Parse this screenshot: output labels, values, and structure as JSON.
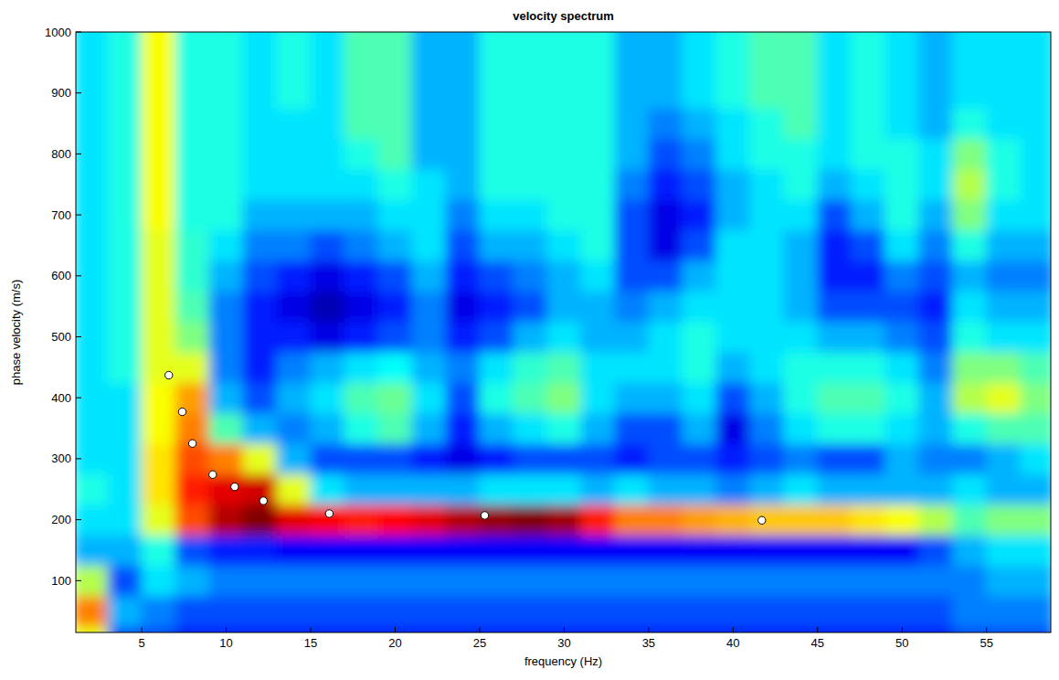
{
  "chart_data": {
    "type": "heatmap",
    "title": "velocity spectrum",
    "x_label": "frequency (Hz)",
    "y_label": "phase velocity (m/s)",
    "xlim": [
      1.1,
      58.8
    ],
    "ylim": [
      15,
      1000
    ],
    "xticks": [
      5,
      10,
      15,
      20,
      25,
      30,
      35,
      40,
      45,
      50,
      55
    ],
    "yticks": [
      100,
      200,
      300,
      400,
      500,
      600,
      700,
      800,
      900,
      1000
    ],
    "zlim": [
      0,
      1
    ],
    "x": [
      2,
      4,
      6,
      8,
      10,
      12,
      14,
      16,
      18,
      20,
      22,
      24,
      26,
      28,
      30,
      32,
      34,
      36,
      38,
      40,
      42,
      44,
      46,
      48,
      50,
      52,
      54,
      56,
      58
    ],
    "y": [
      0,
      50,
      100,
      150,
      200,
      250,
      300,
      350,
      400,
      450,
      500,
      550,
      600,
      650,
      700,
      750,
      800,
      850,
      900,
      950,
      1000
    ],
    "values": [
      [
        0.6,
        0.75,
        0.55,
        0.3,
        0.35,
        0.4,
        0.35,
        0.35,
        0.35,
        0.35,
        0.35,
        0.35,
        0.35,
        0.35,
        0.35,
        0.35,
        0.35,
        0.35,
        0.35,
        0.35,
        0.35
      ],
      [
        0.2,
        0.3,
        0.2,
        0.3,
        0.35,
        0.35,
        0.35,
        0.35,
        0.35,
        0.4,
        0.4,
        0.4,
        0.4,
        0.4,
        0.4,
        0.4,
        0.4,
        0.4,
        0.4,
        0.4,
        0.4
      ],
      [
        0.2,
        0.25,
        0.35,
        0.4,
        0.6,
        0.65,
        0.65,
        0.62,
        0.62,
        0.6,
        0.6,
        0.6,
        0.6,
        0.6,
        0.62,
        0.62,
        0.62,
        0.62,
        0.62,
        0.62,
        0.62
      ],
      [
        0.15,
        0.2,
        0.3,
        0.2,
        0.8,
        0.85,
        0.8,
        0.75,
        0.72,
        0.6,
        0.5,
        0.45,
        0.42,
        0.42,
        0.4,
        0.4,
        0.4,
        0.4,
        0.4,
        0.4,
        0.4
      ],
      [
        0.15,
        0.2,
        0.25,
        0.15,
        0.95,
        0.9,
        0.75,
        0.45,
        0.3,
        0.25,
        0.25,
        0.25,
        0.3,
        0.35,
        0.4,
        0.4,
        0.4,
        0.4,
        0.4,
        0.4,
        0.4
      ],
      [
        0.15,
        0.2,
        0.25,
        0.15,
        1.0,
        0.92,
        0.6,
        0.3,
        0.2,
        0.15,
        0.15,
        0.15,
        0.2,
        0.25,
        0.3,
        0.35,
        0.35,
        0.35,
        0.35,
        0.35,
        0.35
      ],
      [
        0.15,
        0.2,
        0.25,
        0.12,
        0.9,
        0.6,
        0.3,
        0.25,
        0.3,
        0.25,
        0.15,
        0.1,
        0.15,
        0.25,
        0.3,
        0.35,
        0.35,
        0.35,
        0.4,
        0.4,
        0.4
      ],
      [
        0.15,
        0.2,
        0.25,
        0.12,
        0.88,
        0.35,
        0.2,
        0.3,
        0.35,
        0.3,
        0.1,
        0.05,
        0.1,
        0.2,
        0.3,
        0.35,
        0.35,
        0.35,
        0.35,
        0.35,
        0.35
      ],
      [
        0.15,
        0.2,
        0.25,
        0.12,
        0.85,
        0.3,
        0.2,
        0.4,
        0.45,
        0.35,
        0.15,
        0.1,
        0.15,
        0.25,
        0.3,
        0.35,
        0.4,
        0.45,
        0.45,
        0.45,
        0.45
      ],
      [
        0.15,
        0.2,
        0.25,
        0.12,
        0.87,
        0.3,
        0.2,
        0.45,
        0.48,
        0.38,
        0.2,
        0.15,
        0.2,
        0.3,
        0.35,
        0.4,
        0.45,
        0.45,
        0.45,
        0.45,
        0.45
      ],
      [
        0.15,
        0.2,
        0.25,
        0.12,
        0.9,
        0.3,
        0.15,
        0.3,
        0.35,
        0.3,
        0.25,
        0.25,
        0.3,
        0.35,
        0.35,
        0.35,
        0.3,
        0.3,
        0.3,
        0.3,
        0.3
      ],
      [
        0.15,
        0.2,
        0.25,
        0.12,
        0.95,
        0.3,
        0.1,
        0.15,
        0.2,
        0.25,
        0.15,
        0.1,
        0.15,
        0.2,
        0.25,
        0.3,
        0.3,
        0.3,
        0.3,
        0.3,
        0.3
      ],
      [
        0.15,
        0.2,
        0.25,
        0.12,
        0.98,
        0.35,
        0.15,
        0.3,
        0.4,
        0.35,
        0.2,
        0.15,
        0.2,
        0.3,
        0.35,
        0.4,
        0.4,
        0.4,
        0.4,
        0.4,
        0.4
      ],
      [
        0.15,
        0.2,
        0.25,
        0.12,
        1.0,
        0.35,
        0.2,
        0.35,
        0.45,
        0.42,
        0.3,
        0.2,
        0.25,
        0.3,
        0.35,
        0.4,
        0.4,
        0.4,
        0.4,
        0.4,
        0.4
      ],
      [
        0.15,
        0.2,
        0.25,
        0.12,
        0.97,
        0.35,
        0.2,
        0.4,
        0.5,
        0.45,
        0.35,
        0.3,
        0.3,
        0.35,
        0.4,
        0.4,
        0.4,
        0.4,
        0.4,
        0.4,
        0.4
      ],
      [
        0.15,
        0.2,
        0.25,
        0.12,
        0.85,
        0.3,
        0.2,
        0.3,
        0.35,
        0.35,
        0.3,
        0.3,
        0.35,
        0.4,
        0.4,
        0.4,
        0.4,
        0.4,
        0.4,
        0.4,
        0.4
      ],
      [
        0.15,
        0.2,
        0.25,
        0.12,
        0.75,
        0.35,
        0.15,
        0.2,
        0.3,
        0.35,
        0.3,
        0.25,
        0.2,
        0.2,
        0.2,
        0.25,
        0.3,
        0.3,
        0.3,
        0.3,
        0.3
      ],
      [
        0.15,
        0.2,
        0.25,
        0.12,
        0.75,
        0.3,
        0.2,
        0.2,
        0.3,
        0.35,
        0.35,
        0.3,
        0.2,
        0.1,
        0.1,
        0.15,
        0.2,
        0.25,
        0.3,
        0.3,
        0.3
      ],
      [
        0.15,
        0.2,
        0.25,
        0.12,
        0.72,
        0.3,
        0.2,
        0.3,
        0.35,
        0.4,
        0.4,
        0.35,
        0.3,
        0.2,
        0.15,
        0.2,
        0.25,
        0.3,
        0.35,
        0.35,
        0.35
      ],
      [
        0.15,
        0.2,
        0.25,
        0.12,
        0.7,
        0.25,
        0.15,
        0.1,
        0.2,
        0.3,
        0.35,
        0.35,
        0.35,
        0.35,
        0.3,
        0.3,
        0.35,
        0.35,
        0.4,
        0.4,
        0.4
      ],
      [
        0.15,
        0.2,
        0.25,
        0.12,
        0.68,
        0.3,
        0.2,
        0.25,
        0.3,
        0.35,
        0.35,
        0.35,
        0.35,
        0.35,
        0.35,
        0.35,
        0.4,
        0.4,
        0.45,
        0.45,
        0.45
      ],
      [
        0.15,
        0.2,
        0.25,
        0.12,
        0.68,
        0.35,
        0.25,
        0.35,
        0.4,
        0.4,
        0.35,
        0.3,
        0.3,
        0.3,
        0.35,
        0.4,
        0.4,
        0.45,
        0.45,
        0.45,
        0.45
      ],
      [
        0.15,
        0.2,
        0.25,
        0.12,
        0.68,
        0.3,
        0.2,
        0.4,
        0.45,
        0.4,
        0.3,
        0.2,
        0.15,
        0.15,
        0.2,
        0.3,
        0.35,
        0.35,
        0.35,
        0.35,
        0.35
      ],
      [
        0.15,
        0.2,
        0.25,
        0.12,
        0.65,
        0.3,
        0.2,
        0.4,
        0.45,
        0.4,
        0.3,
        0.2,
        0.15,
        0.2,
        0.3,
        0.35,
        0.4,
        0.4,
        0.4,
        0.4,
        0.4
      ],
      [
        0.15,
        0.2,
        0.25,
        0.12,
        0.62,
        0.3,
        0.3,
        0.35,
        0.4,
        0.35,
        0.25,
        0.2,
        0.25,
        0.35,
        0.4,
        0.4,
        0.4,
        0.35,
        0.35,
        0.35,
        0.35
      ],
      [
        0.15,
        0.2,
        0.25,
        0.2,
        0.55,
        0.3,
        0.25,
        0.3,
        0.3,
        0.25,
        0.2,
        0.15,
        0.2,
        0.25,
        0.3,
        0.35,
        0.35,
        0.3,
        0.3,
        0.3,
        0.3
      ],
      [
        0.2,
        0.25,
        0.25,
        0.3,
        0.45,
        0.35,
        0.25,
        0.4,
        0.55,
        0.5,
        0.4,
        0.35,
        0.3,
        0.4,
        0.5,
        0.55,
        0.5,
        0.4,
        0.35,
        0.35,
        0.35
      ],
      [
        0.2,
        0.25,
        0.3,
        0.35,
        0.5,
        0.3,
        0.3,
        0.45,
        0.6,
        0.5,
        0.35,
        0.3,
        0.25,
        0.3,
        0.35,
        0.4,
        0.4,
        0.35,
        0.35,
        0.35,
        0.35
      ],
      [
        0.2,
        0.25,
        0.3,
        0.35,
        0.5,
        0.3,
        0.35,
        0.45,
        0.5,
        0.45,
        0.35,
        0.3,
        0.25,
        0.3,
        0.35,
        0.35,
        0.35,
        0.35,
        0.35,
        0.35,
        0.35
      ]
    ],
    "series": [
      {
        "type": "scatter",
        "marker": "circle",
        "color": "#ffffff",
        "x": [
          6.6,
          7.4,
          8.0,
          9.2,
          10.5,
          12.2,
          16.1,
          25.3,
          41.7
        ],
        "values": [
          437,
          377,
          325,
          274,
          254,
          231,
          210,
          207,
          199
        ]
      }
    ]
  }
}
